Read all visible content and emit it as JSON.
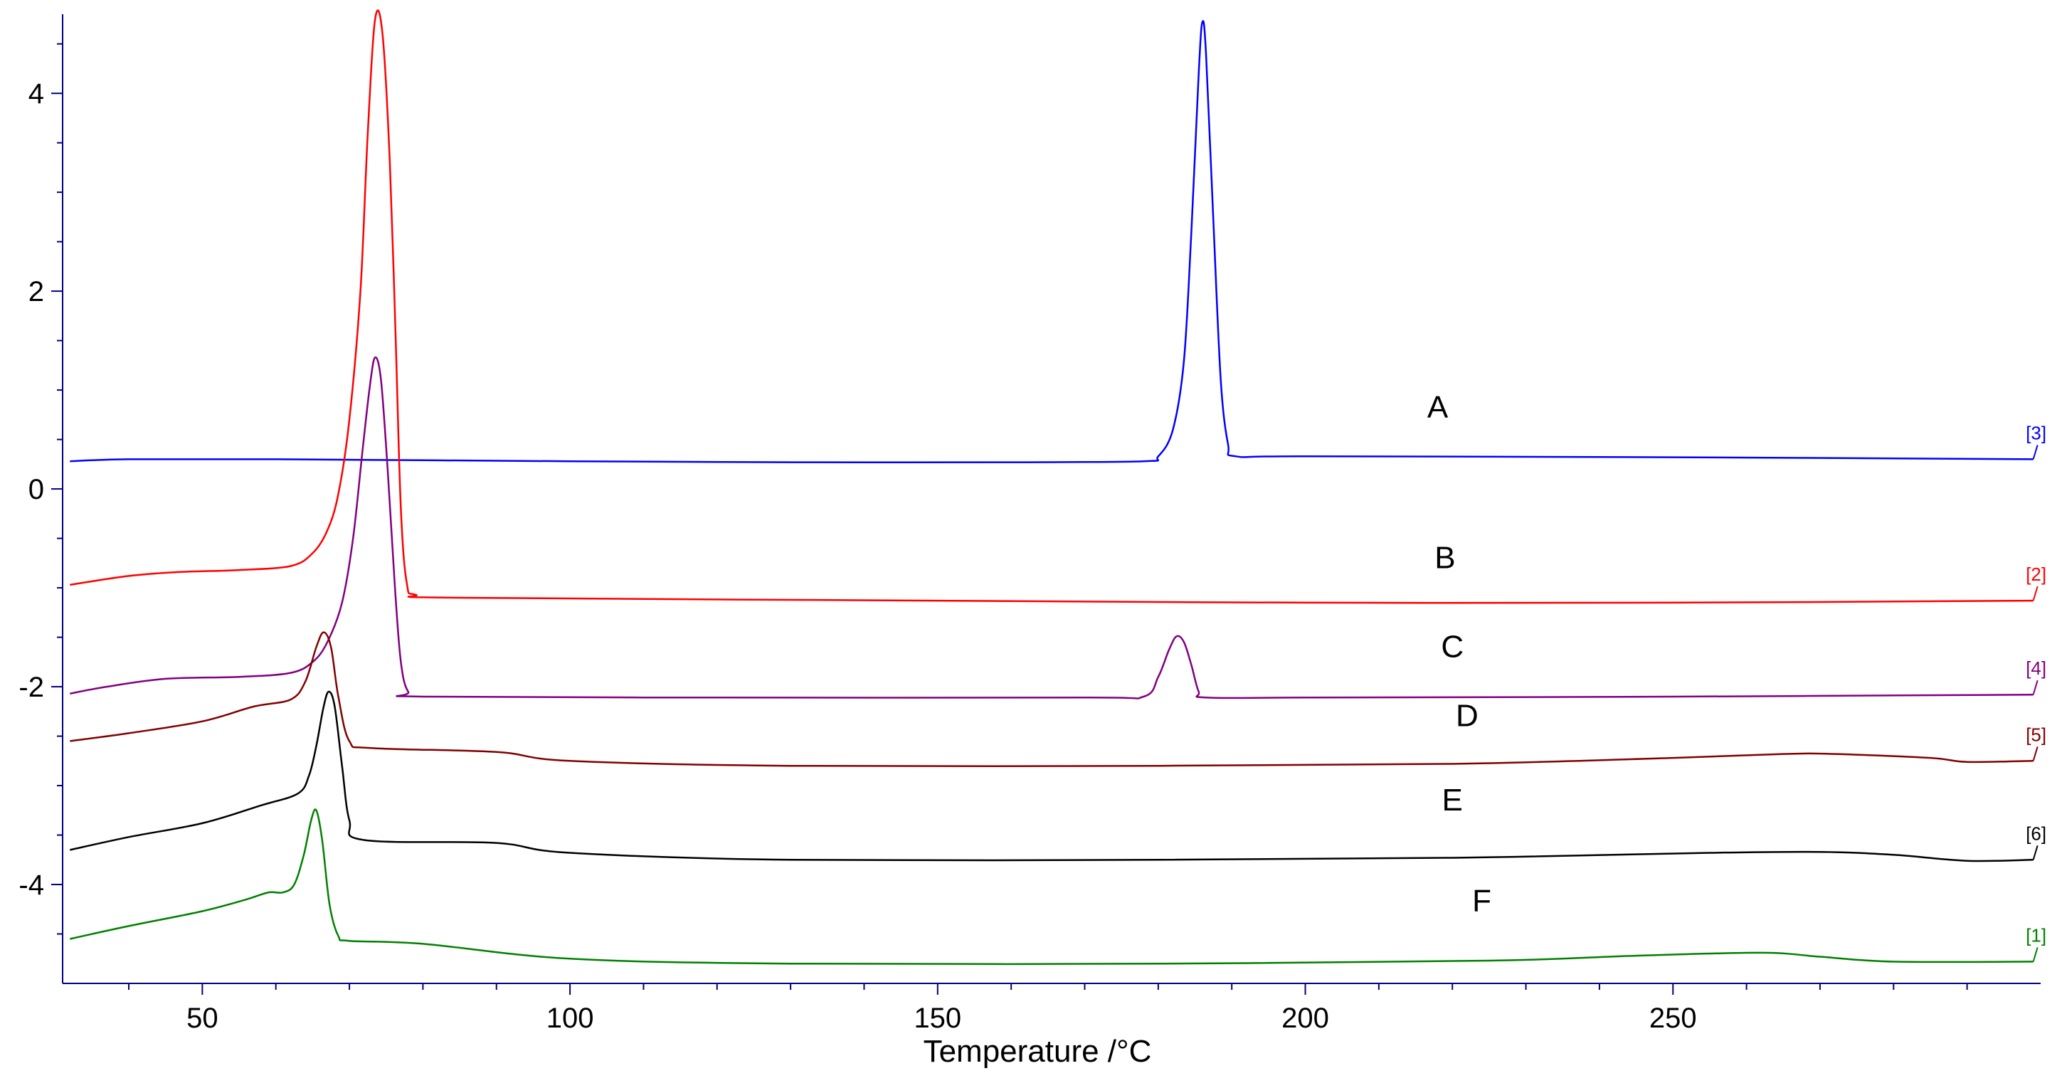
{
  "chart_data": {
    "type": "line",
    "xlabel": "Temperature /°C",
    "ylabel": "",
    "title": "",
    "xlim": [
      31,
      300
    ],
    "ylim": [
      -5,
      4.8
    ],
    "x_ticks": [
      50,
      100,
      150,
      200,
      250
    ],
    "y_ticks": [
      -4,
      -2,
      0,
      2,
      4
    ],
    "grid": false,
    "legend": "none",
    "series": [
      {
        "letter": "A",
        "tag": "[3]",
        "color": "#0000ff",
        "points": [
          [
            32,
            0.28
          ],
          [
            40,
            0.3
          ],
          [
            60,
            0.3
          ],
          [
            100,
            0.28
          ],
          [
            130,
            0.27
          ],
          [
            160,
            0.27
          ],
          [
            178,
            0.28
          ],
          [
            180,
            0.33
          ],
          [
            182,
            0.6
          ],
          [
            183.5,
            1.3
          ],
          [
            184.5,
            2.6
          ],
          [
            185.5,
            4.2
          ],
          [
            186,
            4.72
          ],
          [
            186.5,
            4.4
          ],
          [
            187.5,
            2.7
          ],
          [
            188.5,
            1.1
          ],
          [
            189.5,
            0.45
          ],
          [
            190.5,
            0.33
          ],
          [
            200,
            0.33
          ],
          [
            250,
            0.32
          ],
          [
            299,
            0.3
          ]
        ],
        "label_x": 218,
        "label_y": 0.72
      },
      {
        "letter": "B",
        "tag": "[2]",
        "color": "#ff0000",
        "points": [
          [
            32,
            -0.97
          ],
          [
            40,
            -0.88
          ],
          [
            47,
            -0.84
          ],
          [
            55,
            -0.82
          ],
          [
            62,
            -0.78
          ],
          [
            65,
            -0.65
          ],
          [
            67,
            -0.42
          ],
          [
            68.5,
            -0.05
          ],
          [
            70,
            0.7
          ],
          [
            71.5,
            2.0
          ],
          [
            72.5,
            3.6
          ],
          [
            73.5,
            4.75
          ],
          [
            74.5,
            4.6
          ],
          [
            75.5,
            3.3
          ],
          [
            76.3,
            1.5
          ],
          [
            77,
            -0.2
          ],
          [
            77.8,
            -0.95
          ],
          [
            79,
            -1.07
          ],
          [
            85,
            -1.1
          ],
          [
            150,
            -1.13
          ],
          [
            200,
            -1.15
          ],
          [
            250,
            -1.15
          ],
          [
            299,
            -1.13
          ]
        ],
        "label_x": 219,
        "label_y": -0.8
      },
      {
        "letter": "C",
        "tag": "[4]",
        "color": "#800080",
        "points": [
          [
            32,
            -2.07
          ],
          [
            37,
            -2.0
          ],
          [
            45,
            -1.92
          ],
          [
            55,
            -1.9
          ],
          [
            62,
            -1.86
          ],
          [
            65,
            -1.75
          ],
          [
            67,
            -1.55
          ],
          [
            69,
            -1.15
          ],
          [
            70.5,
            -0.5
          ],
          [
            71.8,
            0.4
          ],
          [
            72.8,
            1.05
          ],
          [
            73.5,
            1.33
          ],
          [
            74.3,
            1.1
          ],
          [
            75.2,
            0.2
          ],
          [
            76.2,
            -1.0
          ],
          [
            77,
            -1.75
          ],
          [
            78,
            -2.05
          ],
          [
            80,
            -2.1
          ],
          [
            120,
            -2.11
          ],
          [
            170,
            -2.11
          ],
          [
            178,
            -2.1
          ],
          [
            180,
            -1.9
          ],
          [
            181.5,
            -1.62
          ],
          [
            182.5,
            -1.49
          ],
          [
            183.5,
            -1.55
          ],
          [
            184.5,
            -1.78
          ],
          [
            185.5,
            -2.05
          ],
          [
            186.5,
            -2.11
          ],
          [
            200,
            -2.11
          ],
          [
            250,
            -2.1
          ],
          [
            299,
            -2.08
          ]
        ],
        "label_x": 220,
        "label_y": -1.7
      },
      {
        "letter": "D",
        "tag": "[5]",
        "color": "#800000",
        "points": [
          [
            32,
            -2.55
          ],
          [
            40,
            -2.47
          ],
          [
            50,
            -2.35
          ],
          [
            57,
            -2.2
          ],
          [
            62,
            -2.13
          ],
          [
            64,
            -1.95
          ],
          [
            65.5,
            -1.6
          ],
          [
            66.5,
            -1.45
          ],
          [
            67.5,
            -1.6
          ],
          [
            68.5,
            -2.1
          ],
          [
            70,
            -2.55
          ],
          [
            73,
            -2.62
          ],
          [
            90,
            -2.66
          ],
          [
            100,
            -2.75
          ],
          [
            130,
            -2.8
          ],
          [
            180,
            -2.8
          ],
          [
            220,
            -2.78
          ],
          [
            250,
            -2.72
          ],
          [
            265,
            -2.68
          ],
          [
            272,
            -2.68
          ],
          [
            285,
            -2.72
          ],
          [
            290,
            -2.76
          ],
          [
            299,
            -2.75
          ]
        ],
        "label_x": 222,
        "label_y": -2.4
      },
      {
        "letter": "E",
        "tag": "[6]",
        "color": "#000000",
        "points": [
          [
            32,
            -3.65
          ],
          [
            40,
            -3.52
          ],
          [
            50,
            -3.38
          ],
          [
            58,
            -3.2
          ],
          [
            63,
            -3.08
          ],
          [
            64.5,
            -2.9
          ],
          [
            65.5,
            -2.6
          ],
          [
            66.5,
            -2.2
          ],
          [
            67.2,
            -2.05
          ],
          [
            68,
            -2.2
          ],
          [
            69,
            -2.8
          ],
          [
            70,
            -3.35
          ],
          [
            72,
            -3.55
          ],
          [
            90,
            -3.58
          ],
          [
            100,
            -3.68
          ],
          [
            130,
            -3.75
          ],
          [
            180,
            -3.75
          ],
          [
            220,
            -3.73
          ],
          [
            255,
            -3.68
          ],
          [
            270,
            -3.67
          ],
          [
            280,
            -3.7
          ],
          [
            290,
            -3.76
          ],
          [
            299,
            -3.75
          ]
        ],
        "label_x": 220,
        "label_y": -3.25
      },
      {
        "letter": "F",
        "tag": "[1]",
        "color": "#008000",
        "points": [
          [
            32,
            -4.55
          ],
          [
            40,
            -4.42
          ],
          [
            50,
            -4.27
          ],
          [
            56,
            -4.15
          ],
          [
            59,
            -4.08
          ],
          [
            61,
            -4.08
          ],
          [
            62.5,
            -4.0
          ],
          [
            63.8,
            -3.7
          ],
          [
            64.8,
            -3.35
          ],
          [
            65.5,
            -3.25
          ],
          [
            66.3,
            -3.55
          ],
          [
            67.3,
            -4.2
          ],
          [
            68.5,
            -4.52
          ],
          [
            70,
            -4.57
          ],
          [
            80,
            -4.6
          ],
          [
            100,
            -4.75
          ],
          [
            130,
            -4.8
          ],
          [
            180,
            -4.8
          ],
          [
            225,
            -4.77
          ],
          [
            245,
            -4.72
          ],
          [
            262,
            -4.69
          ],
          [
            270,
            -4.73
          ],
          [
            280,
            -4.78
          ],
          [
            299,
            -4.78
          ]
        ],
        "label_x": 224,
        "label_y": -4.27
      }
    ]
  }
}
